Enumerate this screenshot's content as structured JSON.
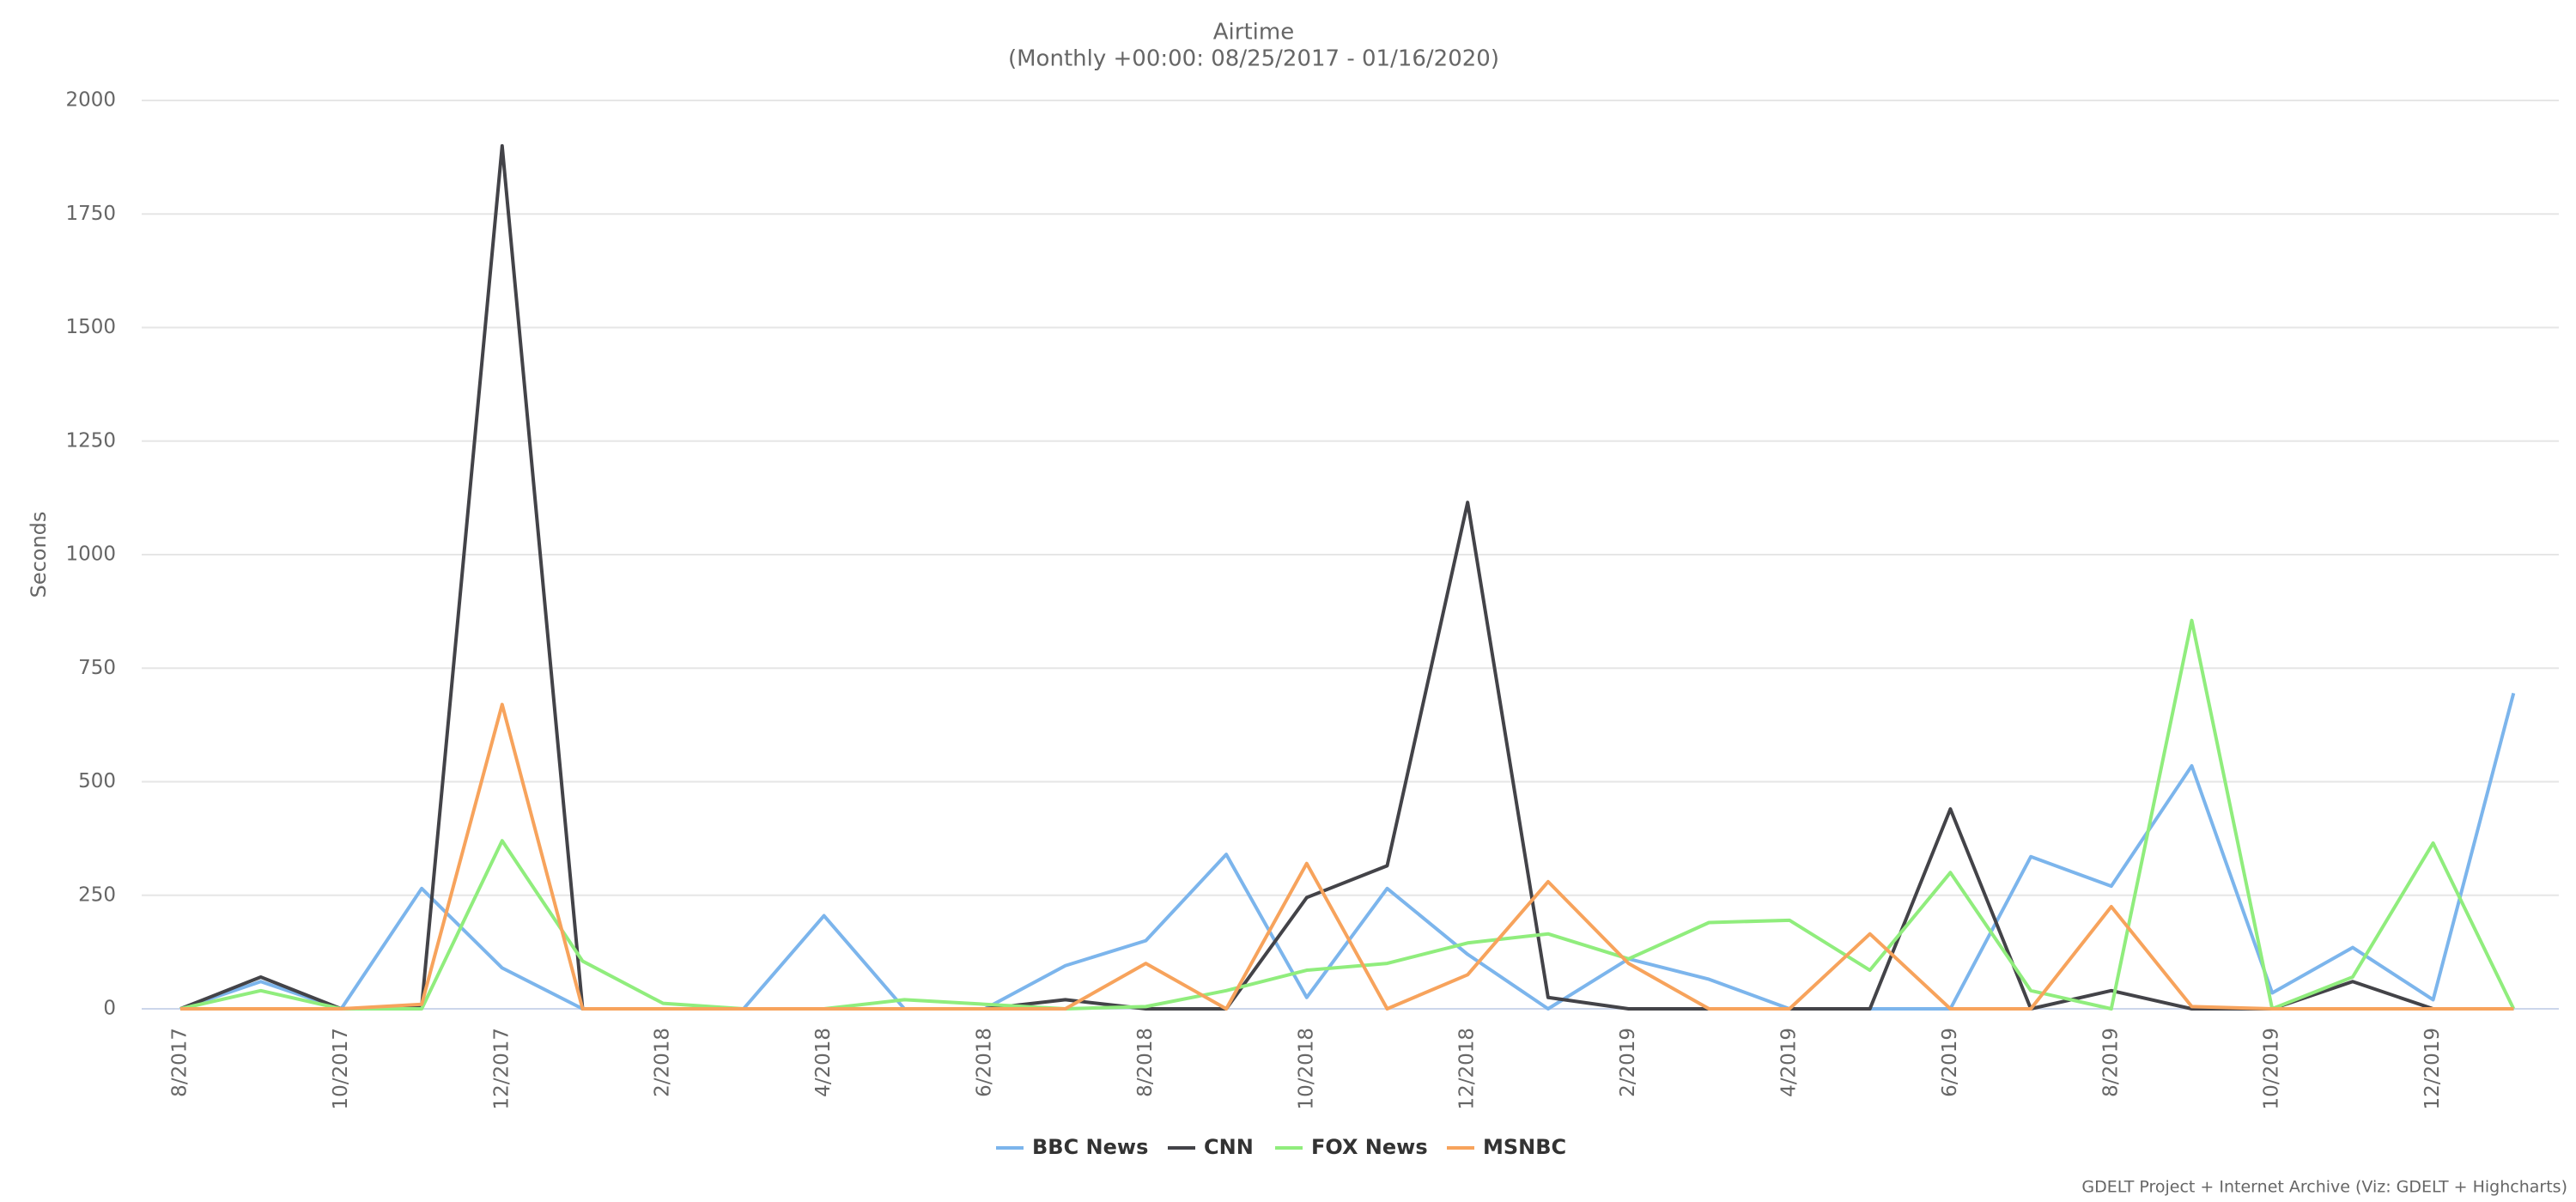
{
  "chart_data": {
    "type": "line",
    "title": "Airtime",
    "subtitle": "(Monthly +00:00: 08/25/2017 - 01/16/2020)",
    "y_label": "Seconds",
    "credits": "GDELT Project + Internet Archive (Viz: GDELT + Highcharts)",
    "categories": [
      "8/2017",
      null,
      "10/2017",
      null,
      "12/2017",
      null,
      "2/2018",
      null,
      "4/2018",
      null,
      "6/2018",
      null,
      "8/2018",
      null,
      "10/2018",
      null,
      "12/2018",
      null,
      "2/2019",
      null,
      "4/2019",
      null,
      "6/2019",
      null,
      "8/2019",
      null,
      "10/2019",
      null,
      "12/2019",
      null
    ],
    "ylim": [
      0,
      2000
    ],
    "yticks": [
      0,
      250,
      500,
      750,
      1000,
      1250,
      1500,
      1750,
      2000
    ],
    "grid": true,
    "legend": "bottom",
    "series": [
      {
        "name": "BBC News",
        "color": "#7cb5ec",
        "values": [
          0,
          60,
          0,
          265,
          90,
          0,
          0,
          0,
          205,
          0,
          0,
          95,
          150,
          340,
          25,
          265,
          120,
          0,
          110,
          65,
          0,
          0,
          0,
          335,
          270,
          535,
          35,
          135,
          20,
          695
        ]
      },
      {
        "name": "CNN",
        "color": "#434348",
        "values": [
          0,
          70,
          0,
          5,
          1900,
          0,
          0,
          0,
          0,
          0,
          0,
          20,
          0,
          0,
          245,
          315,
          1115,
          25,
          0,
          0,
          0,
          0,
          440,
          0,
          40,
          0,
          0,
          60,
          0,
          0
        ]
      },
      {
        "name": "FOX News",
        "color": "#90ed7d",
        "values": [
          0,
          40,
          0,
          0,
          370,
          105,
          12,
          0,
          0,
          20,
          10,
          0,
          5,
          40,
          85,
          100,
          145,
          165,
          110,
          190,
          195,
          85,
          300,
          40,
          0,
          855,
          0,
          70,
          365,
          0
        ]
      },
      {
        "name": "MSNBC",
        "color": "#f7a35c",
        "values": [
          0,
          0,
          0,
          10,
          670,
          0,
          0,
          0,
          0,
          0,
          0,
          0,
          100,
          0,
          320,
          0,
          75,
          280,
          100,
          0,
          0,
          165,
          0,
          0,
          225,
          5,
          0,
          0,
          0,
          0
        ]
      }
    ]
  }
}
